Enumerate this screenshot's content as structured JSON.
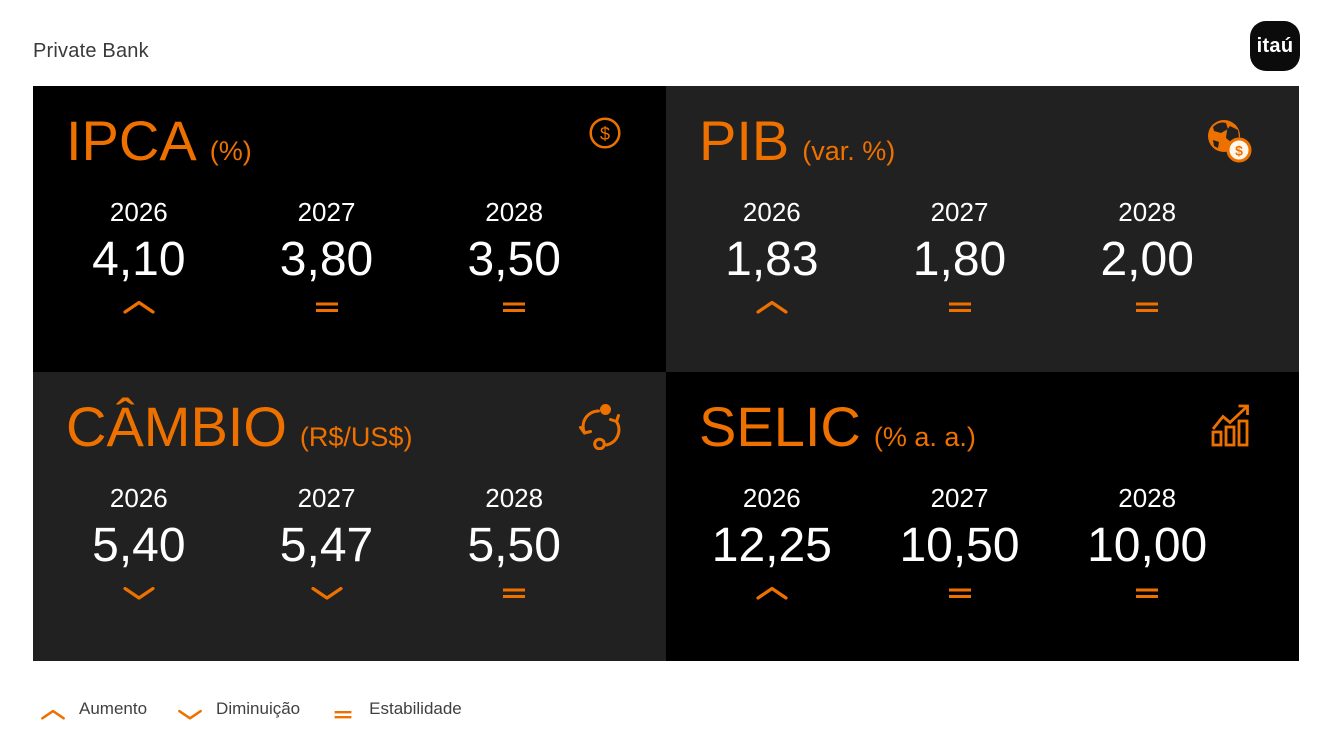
{
  "header": {
    "brand": "Private Bank",
    "logo_text": "itaú"
  },
  "colors": {
    "accent_orange": "#EE7100",
    "card_black": "#000000",
    "card_gray": "#212121",
    "text_white": "#FFFFFF",
    "text_dark": "#404040",
    "logo_bg": "#0B0B0B"
  },
  "cards": [
    {
      "title": "IPCA",
      "unit": "(%)",
      "icon": "dollar-circle-icon",
      "theme": "black",
      "columns": [
        {
          "year": "2026",
          "value": "4,10",
          "trend": "up"
        },
        {
          "year": "2027",
          "value": "3,80",
          "trend": "equal"
        },
        {
          "year": "2028",
          "value": "3,50",
          "trend": "equal"
        }
      ]
    },
    {
      "title": "PIB",
      "unit": "(var. %)",
      "icon": "globe-dollar-icon",
      "theme": "gray",
      "columns": [
        {
          "year": "2026",
          "value": "1,83",
          "trend": "up"
        },
        {
          "year": "2027",
          "value": "1,80",
          "trend": "equal"
        },
        {
          "year": "2028",
          "value": "2,00",
          "trend": "equal"
        }
      ]
    },
    {
      "title": "CÂMBIO",
      "unit": "(R$/US$)",
      "icon": "currency-exchange-icon",
      "theme": "gray",
      "columns": [
        {
          "year": "2026",
          "value": "5,40",
          "trend": "down"
        },
        {
          "year": "2027",
          "value": "5,47",
          "trend": "down"
        },
        {
          "year": "2028",
          "value": "5,50",
          "trend": "equal"
        }
      ]
    },
    {
      "title": "SELIC",
      "unit": "(% a. a.)",
      "icon": "bar-chart-up-icon",
      "theme": "black",
      "columns": [
        {
          "year": "2026",
          "value": "12,25",
          "trend": "up"
        },
        {
          "year": "2027",
          "value": "10,50",
          "trend": "equal"
        },
        {
          "year": "2028",
          "value": "10,00",
          "trend": "equal"
        }
      ]
    }
  ],
  "legend": [
    {
      "label": "Aumento",
      "trend": "up"
    },
    {
      "label": "Diminuição",
      "trend": "down"
    },
    {
      "label": "Estabilidade",
      "trend": "equal"
    }
  ],
  "chart_data": {
    "type": "table",
    "categories": [
      "2026",
      "2027",
      "2028"
    ],
    "series": [
      {
        "name": "IPCA (%)",
        "values": [
          4.1,
          3.8,
          3.5
        ],
        "trends": [
          "up",
          "equal",
          "equal"
        ]
      },
      {
        "name": "PIB (var. %)",
        "values": [
          1.83,
          1.8,
          2.0
        ],
        "trends": [
          "up",
          "equal",
          "equal"
        ]
      },
      {
        "name": "CÂMBIO (R$/US$)",
        "values": [
          5.4,
          5.47,
          5.5
        ],
        "trends": [
          "down",
          "down",
          "equal"
        ]
      },
      {
        "name": "SELIC (% a. a.)",
        "values": [
          12.25,
          10.5,
          10.0
        ],
        "trends": [
          "up",
          "equal",
          "equal"
        ]
      }
    ],
    "legend_labels": [
      "Aumento",
      "Diminuição",
      "Estabilidade"
    ],
    "title": "Private Bank"
  }
}
